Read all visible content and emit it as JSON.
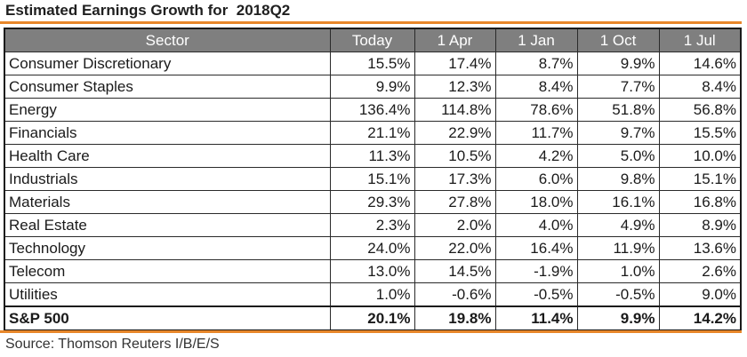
{
  "title": "Estimated Earnings Growth for  2018Q2",
  "source": "Source: Thomson Reuters I/B/E/S",
  "colors": {
    "accent_rule": "#e8872a",
    "header_bg": "#7f7f7f",
    "header_text": "#ffffff",
    "border": "#2a2a2a"
  },
  "chart_data": {
    "type": "table",
    "title": "Estimated Earnings Growth for  2018Q2",
    "columns": [
      "Sector",
      "Today",
      "1 Apr",
      "1 Jan",
      "1 Oct",
      "1 Jul"
    ],
    "rows": [
      {
        "sector": "Consumer Discretionary",
        "values": [
          "15.5%",
          "17.4%",
          "8.7%",
          "9.9%",
          "14.6%"
        ]
      },
      {
        "sector": "Consumer Staples",
        "values": [
          "9.9%",
          "12.3%",
          "8.4%",
          "7.7%",
          "8.4%"
        ]
      },
      {
        "sector": "Energy",
        "values": [
          "136.4%",
          "114.8%",
          "78.6%",
          "51.8%",
          "56.8%"
        ]
      },
      {
        "sector": "Financials",
        "values": [
          "21.1%",
          "22.9%",
          "11.7%",
          "9.7%",
          "15.5%"
        ]
      },
      {
        "sector": "Health Care",
        "values": [
          "11.3%",
          "10.5%",
          "4.2%",
          "5.0%",
          "10.0%"
        ]
      },
      {
        "sector": "Industrials",
        "values": [
          "15.1%",
          "17.3%",
          "6.0%",
          "9.8%",
          "15.1%"
        ]
      },
      {
        "sector": "Materials",
        "values": [
          "29.3%",
          "27.8%",
          "18.0%",
          "16.1%",
          "16.8%"
        ]
      },
      {
        "sector": "Real Estate",
        "values": [
          "2.3%",
          "2.0%",
          "4.0%",
          "4.9%",
          "8.9%"
        ]
      },
      {
        "sector": "Technology",
        "values": [
          "24.0%",
          "22.0%",
          "16.4%",
          "11.9%",
          "13.6%"
        ]
      },
      {
        "sector": "Telecom",
        "values": [
          "13.0%",
          "14.5%",
          "-1.9%",
          "1.0%",
          "2.6%"
        ]
      },
      {
        "sector": "Utilities",
        "values": [
          "1.0%",
          "-0.6%",
          "-0.5%",
          "-0.5%",
          "9.0%"
        ]
      }
    ],
    "total": {
      "sector": "S&P 500",
      "values": [
        "20.1%",
        "19.8%",
        "11.4%",
        "9.9%",
        "14.2%"
      ]
    }
  }
}
